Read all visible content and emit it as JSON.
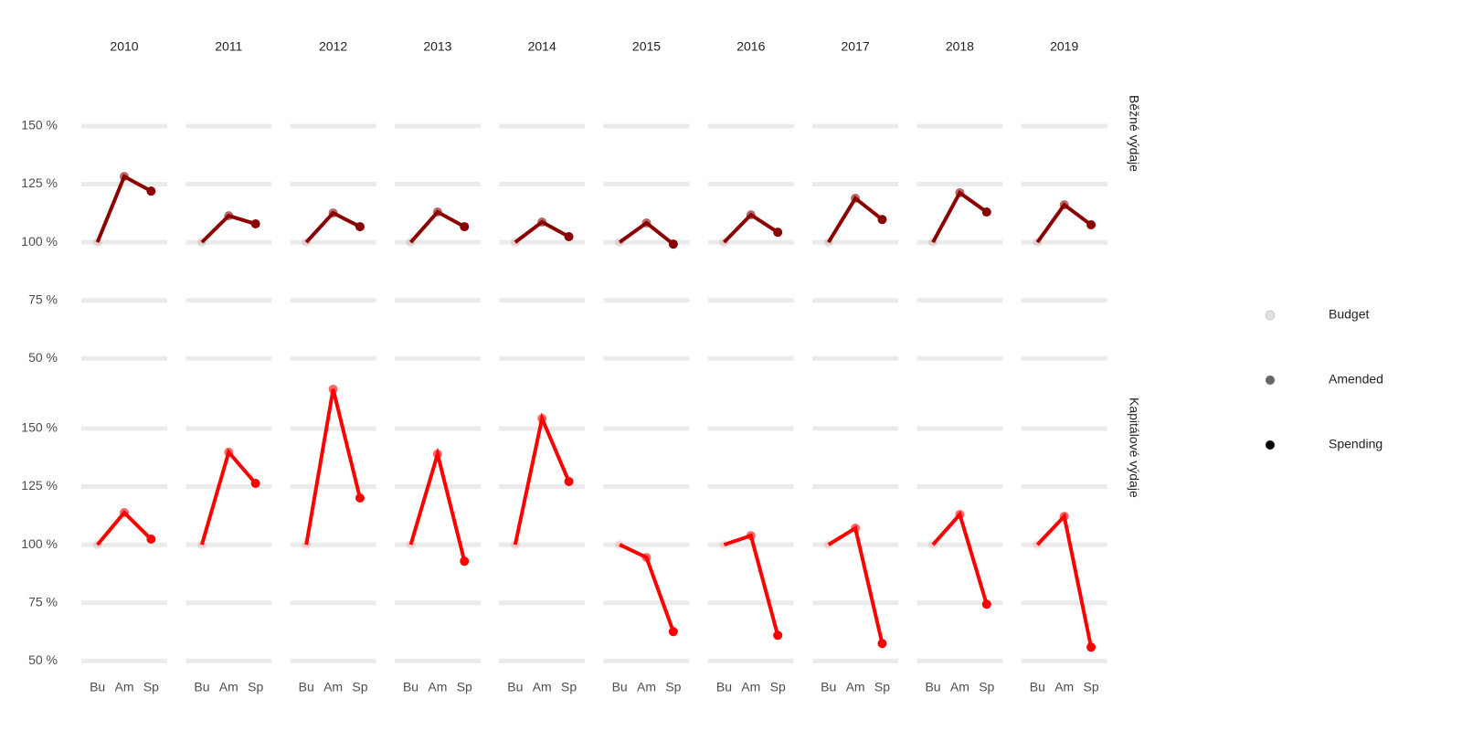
{
  "chart_data": {
    "type": "line",
    "categories": [
      "Bu",
      "Am",
      "Sp"
    ],
    "columns": [
      "2010",
      "2011",
      "2012",
      "2013",
      "2014",
      "2015",
      "2016",
      "2017",
      "2018",
      "2019"
    ],
    "ylim": [
      45,
      172
    ],
    "yticks": [
      {
        "value": 50,
        "label": "50 %"
      },
      {
        "value": 75,
        "label": "75 %"
      },
      {
        "value": 100,
        "label": "100 %"
      },
      {
        "value": 125,
        "label": "125 %"
      },
      {
        "value": 150,
        "label": "150 %"
      }
    ],
    "grid": true,
    "rows": [
      {
        "label": "Běžné výdaje",
        "color": "#8b0000",
        "values": [
          [
            100,
            128.3,
            122
          ],
          [
            100,
            111.4,
            107.9
          ],
          [
            100,
            112.6,
            106.7
          ],
          [
            100,
            113,
            106.7
          ],
          [
            100,
            108.7,
            102.4
          ],
          [
            100,
            108.3,
            99.2
          ],
          [
            100,
            111.8,
            104.3
          ],
          [
            100,
            118.9,
            109.8
          ],
          [
            100,
            121.3,
            113
          ],
          [
            100,
            116.1,
            107.5
          ]
        ]
      },
      {
        "label": "Kapitálové výdaje",
        "color": "#ff0000",
        "values": [
          [
            100,
            113.8,
            102.4
          ],
          [
            100,
            139.8,
            126.4
          ],
          [
            100,
            166.9,
            120.1
          ],
          [
            100,
            139,
            92.9
          ],
          [
            100,
            154.3,
            127.2
          ],
          [
            100,
            94.5,
            62.6
          ],
          [
            100,
            103.9,
            61
          ],
          [
            100,
            107.1,
            57.5
          ],
          [
            100,
            113,
            74.4
          ],
          [
            100,
            112.2,
            55.9
          ]
        ]
      }
    ],
    "legend": [
      {
        "name": "Budget",
        "color": "#000000",
        "alpha": 0.12
      },
      {
        "name": "Amended",
        "color": "#000000",
        "alpha": 0.6
      },
      {
        "name": "Spending",
        "color": "#000000",
        "alpha": 1
      }
    ]
  }
}
